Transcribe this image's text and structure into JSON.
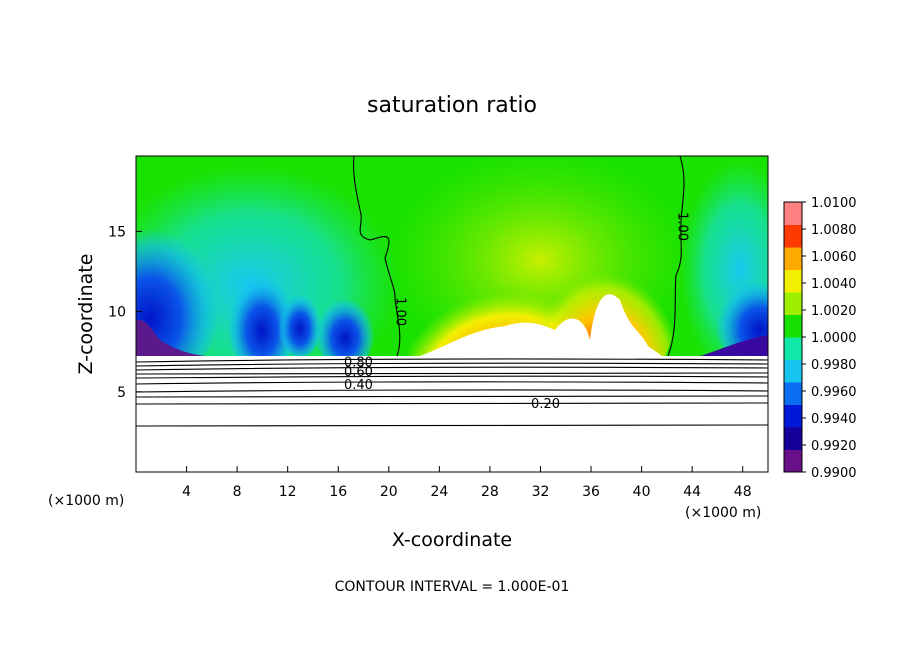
{
  "chart_data": {
    "type": "heatmap",
    "title": "saturation ratio",
    "xlabel": "X-coordinate",
    "ylabel": "Z-coordinate",
    "x_unit": "(×1000 m)",
    "x_ticks": [
      "4",
      "8",
      "12",
      "16",
      "20",
      "24",
      "28",
      "32",
      "36",
      "40",
      "44",
      "48"
    ],
    "y_ticks": [
      "5",
      "10",
      "15"
    ],
    "xlim": [
      0,
      50
    ],
    "ylim": [
      0,
      19.7
    ],
    "colorbar": {
      "min": 0.99,
      "max": 1.01,
      "ticks": [
        "0.9900",
        "0.9920",
        "0.9940",
        "0.9960",
        "0.9980",
        "1.0000",
        "1.0020",
        "1.0040",
        "1.0060",
        "1.0080",
        "1.0100"
      ],
      "colors": [
        "#6a0f8a",
        "#15009a",
        "#0018d8",
        "#0a6ef0",
        "#17c4f0",
        "#10e8a8",
        "#16e000",
        "#9ff000",
        "#f2f000",
        "#ffaa00",
        "#ff3a00",
        "#ff8080"
      ]
    },
    "contour_labels": [
      {
        "text": "1.00",
        "x": 20.9,
        "z": 10.0
      },
      {
        "text": "1.00",
        "x": 43.2,
        "z": 15.3
      },
      {
        "text": "0.80",
        "x": 17.6,
        "z": 6.9
      },
      {
        "text": "0.60",
        "x": 17.6,
        "z": 6.3
      },
      {
        "text": "0.40",
        "x": 17.6,
        "z": 5.5
      },
      {
        "text": "0.20",
        "x": 32.4,
        "z": 4.3
      }
    ],
    "footer": "CONTOUR INTERVAL = 1.000E-01"
  }
}
